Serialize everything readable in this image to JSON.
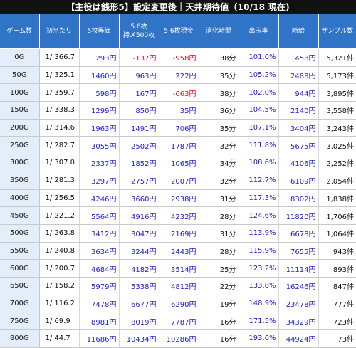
{
  "title": "【主役は銭形5】設定変更後｜天井期待値（10/18 現在)",
  "headers": {
    "game": "ゲーム数",
    "initial": "初当たり",
    "ev5": "5枚等価",
    "ev56_line1": "5.6枚",
    "ev56_line2": "持メ500枚",
    "ev56cash": "5.6枚現金",
    "time": "消化時間",
    "payout": "出玉率",
    "hourly": "時給",
    "samples": "サンプル数"
  },
  "rows": [
    {
      "game": "0G",
      "initial": "1/ 366.7",
      "ev5": "293円",
      "ev56": "-137円",
      "ev56cash": "-958円",
      "time": "38分",
      "payout": "101.0%",
      "hourly": "458円",
      "samples": "5,321件",
      "ev5_neg": false,
      "ev56_neg": true,
      "ev56cash_neg": true
    },
    {
      "game": "50G",
      "initial": "1/ 325.1",
      "ev5": "1460円",
      "ev56": "963円",
      "ev56cash": "222円",
      "time": "35分",
      "payout": "105.2%",
      "hourly": "2488円",
      "samples": "5,173件",
      "ev5_neg": false,
      "ev56_neg": false,
      "ev56cash_neg": false
    },
    {
      "game": "100G",
      "initial": "1/ 359.7",
      "ev5": "598円",
      "ev56": "167円",
      "ev56cash": "-663円",
      "time": "38分",
      "payout": "102.0%",
      "hourly": "944円",
      "samples": "3,895件",
      "ev5_neg": false,
      "ev56_neg": false,
      "ev56cash_neg": true
    },
    {
      "game": "150G",
      "initial": "1/ 338.3",
      "ev5": "1299円",
      "ev56": "850円",
      "ev56cash": "35円",
      "time": "36分",
      "payout": "104.5%",
      "hourly": "2140円",
      "samples": "3,558件",
      "ev5_neg": false,
      "ev56_neg": false,
      "ev56cash_neg": false
    },
    {
      "game": "200G",
      "initial": "1/ 314.6",
      "ev5": "1963円",
      "ev56": "1491円",
      "ev56cash": "706円",
      "time": "35分",
      "payout": "107.1%",
      "hourly": "3404円",
      "samples": "3,243件",
      "ev5_neg": false,
      "ev56_neg": false,
      "ev56cash_neg": false
    },
    {
      "game": "250G",
      "initial": "1/ 282.7",
      "ev5": "3055円",
      "ev56": "2502円",
      "ev56cash": "1787円",
      "time": "32分",
      "payout": "111.8%",
      "hourly": "5675円",
      "samples": "3,025件",
      "ev5_neg": false,
      "ev56_neg": false,
      "ev56cash_neg": false
    },
    {
      "game": "300G",
      "initial": "1/ 307.0",
      "ev5": "2337円",
      "ev56": "1852円",
      "ev56cash": "1065円",
      "time": "34分",
      "payout": "108.6%",
      "hourly": "4106円",
      "samples": "2,252件",
      "ev5_neg": false,
      "ev56_neg": false,
      "ev56cash_neg": false
    },
    {
      "game": "350G",
      "initial": "1/ 281.3",
      "ev5": "3297円",
      "ev56": "2757円",
      "ev56cash": "2007円",
      "time": "32分",
      "payout": "112.7%",
      "hourly": "6109円",
      "samples": "2,054件",
      "ev5_neg": false,
      "ev56_neg": false,
      "ev56cash_neg": false
    },
    {
      "game": "400G",
      "initial": "1/ 256.5",
      "ev5": "4246円",
      "ev56": "3660円",
      "ev56cash": "2938円",
      "time": "31分",
      "payout": "117.3%",
      "hourly": "8302円",
      "samples": "1,838件",
      "ev5_neg": false,
      "ev56_neg": false,
      "ev56cash_neg": false
    },
    {
      "game": "450G",
      "initial": "1/ 221.2",
      "ev5": "5564円",
      "ev56": "4916円",
      "ev56cash": "4232円",
      "time": "28分",
      "payout": "124.6%",
      "hourly": "11820円",
      "samples": "1,706件",
      "ev5_neg": false,
      "ev56_neg": false,
      "ev56cash_neg": false
    },
    {
      "game": "500G",
      "initial": "1/ 263.8",
      "ev5": "3412円",
      "ev56": "3047円",
      "ev56cash": "2169円",
      "time": "31分",
      "payout": "113.9%",
      "hourly": "6678円",
      "samples": "1,064件",
      "ev5_neg": false,
      "ev56_neg": false,
      "ev56cash_neg": false
    },
    {
      "game": "550G",
      "initial": "1/ 240.8",
      "ev5": "3634円",
      "ev56": "3244円",
      "ev56cash": "2443円",
      "time": "28分",
      "payout": "115.9%",
      "hourly": "7655円",
      "samples": "943件",
      "ev5_neg": false,
      "ev56_neg": false,
      "ev56cash_neg": false
    },
    {
      "game": "600G",
      "initial": "1/ 200.7",
      "ev5": "4684円",
      "ev56": "4182円",
      "ev56cash": "3514円",
      "time": "25分",
      "payout": "123.2%",
      "hourly": "11114円",
      "samples": "893件",
      "ev5_neg": false,
      "ev56_neg": false,
      "ev56cash_neg": false
    },
    {
      "game": "650G",
      "initial": "1/ 158.2",
      "ev5": "5979円",
      "ev56": "5338円",
      "ev56cash": "4812円",
      "time": "22分",
      "payout": "133.8%",
      "hourly": "16246円",
      "samples": "847件",
      "ev5_neg": false,
      "ev56_neg": false,
      "ev56cash_neg": false
    },
    {
      "game": "700G",
      "initial": "1/ 116.2",
      "ev5": "7478円",
      "ev56": "6677円",
      "ev56cash": "6290円",
      "time": "19分",
      "payout": "148.9%",
      "hourly": "23478円",
      "samples": "777件",
      "ev5_neg": false,
      "ev56_neg": false,
      "ev56cash_neg": false
    },
    {
      "game": "750G",
      "initial": "1/ 69.9",
      "ev5": "8981円",
      "ev56": "8019円",
      "ev56cash": "7787円",
      "time": "16分",
      "payout": "171.5%",
      "hourly": "34329円",
      "samples": "723件",
      "ev5_neg": false,
      "ev56_neg": false,
      "ev56cash_neg": false
    },
    {
      "game": "800G",
      "initial": "1/ 44.7",
      "ev5": "11686円",
      "ev56": "10434円",
      "ev56cash": "10286円",
      "time": "16分",
      "payout": "193.6%",
      "hourly": "44924円",
      "samples": "73件",
      "ev5_neg": false,
      "ev56_neg": false,
      "ev56cash_neg": false
    }
  ],
  "colors": {
    "header_bg": "#2f74c7",
    "title_bg": "#111111",
    "positive": "#2323d6",
    "negative": "#e0102a",
    "game_col_bg": "#e3eefa"
  }
}
